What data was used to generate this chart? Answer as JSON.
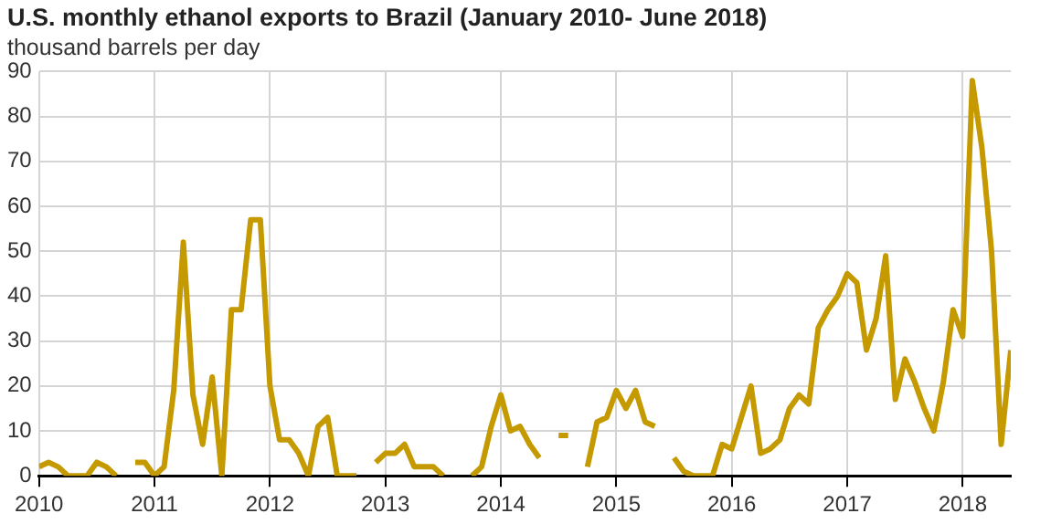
{
  "chart_data": {
    "type": "line",
    "title": "U.S. monthly ethanol exports to Brazil (January 2010- June 2018)",
    "subtitle": "thousand barrels per day",
    "x": [
      "2010-01",
      "2010-02",
      "2010-03",
      "2010-04",
      "2010-05",
      "2010-06",
      "2010-07",
      "2010-08",
      "2010-09",
      "2010-10",
      "2010-11",
      "2010-12",
      "2011-01",
      "2011-02",
      "2011-03",
      "2011-04",
      "2011-05",
      "2011-06",
      "2011-07",
      "2011-08",
      "2011-09",
      "2011-10",
      "2011-11",
      "2011-12",
      "2012-01",
      "2012-02",
      "2012-03",
      "2012-04",
      "2012-05",
      "2012-06",
      "2012-07",
      "2012-08",
      "2012-09",
      "2012-10",
      "2012-11",
      "2012-12",
      "2013-01",
      "2013-02",
      "2013-03",
      "2013-04",
      "2013-05",
      "2013-06",
      "2013-07",
      "2013-08",
      "2013-09",
      "2013-10",
      "2013-11",
      "2013-12",
      "2014-01",
      "2014-02",
      "2014-03",
      "2014-04",
      "2014-05",
      "2014-06",
      "2014-07",
      "2014-08",
      "2014-09",
      "2014-10",
      "2014-11",
      "2014-12",
      "2015-01",
      "2015-02",
      "2015-03",
      "2015-04",
      "2015-05",
      "2015-06",
      "2015-07",
      "2015-08",
      "2015-09",
      "2015-10",
      "2015-11",
      "2015-12",
      "2016-01",
      "2016-02",
      "2016-03",
      "2016-04",
      "2016-05",
      "2016-06",
      "2016-07",
      "2016-08",
      "2016-09",
      "2016-10",
      "2016-11",
      "2016-12",
      "2017-01",
      "2017-02",
      "2017-03",
      "2017-04",
      "2017-05",
      "2017-06",
      "2017-07",
      "2017-08",
      "2017-09",
      "2017-10",
      "2017-11",
      "2017-12",
      "2018-01",
      "2018-02",
      "2018-03",
      "2018-04",
      "2018-05",
      "2018-06"
    ],
    "series": [
      {
        "color": "#c49a00",
        "values": [
          2,
          3,
          2,
          0,
          0,
          0,
          3,
          2,
          0,
          null,
          3,
          3,
          0,
          2,
          19,
          52,
          18,
          7,
          22,
          0,
          37,
          37,
          57,
          57,
          20,
          8,
          8,
          5,
          0,
          11,
          13,
          0,
          0,
          0,
          null,
          3,
          5,
          5,
          7,
          2,
          2,
          2,
          0,
          null,
          null,
          0,
          2,
          11,
          18,
          10,
          11,
          7,
          4,
          null,
          9,
          9,
          null,
          2,
          12,
          13,
          19,
          15,
          19,
          12,
          11,
          null,
          4,
          1,
          0,
          0,
          0,
          7,
          6,
          13,
          20,
          5,
          6,
          8,
          15,
          18,
          16,
          33,
          37,
          40,
          45,
          43,
          28,
          35,
          49,
          17,
          26,
          21,
          15,
          10,
          21,
          37,
          31,
          88,
          73,
          50,
          7,
          28
        ]
      }
    ],
    "xlim": [
      "2010-01",
      "2018-06"
    ],
    "xticks": [
      {
        "value": "2010",
        "label": "2010"
      },
      {
        "value": "2011",
        "label": "2011"
      },
      {
        "value": "2012",
        "label": "2012"
      },
      {
        "value": "2013",
        "label": "2013"
      },
      {
        "value": "2014",
        "label": "2014"
      },
      {
        "value": "2015",
        "label": "2015"
      },
      {
        "value": "2016",
        "label": "2016"
      },
      {
        "value": "2017",
        "label": "2017"
      },
      {
        "value": "2018",
        "label": "2018"
      }
    ],
    "ylim": [
      0,
      90
    ],
    "yticks": [
      0,
      10,
      20,
      30,
      40,
      50,
      60,
      70,
      80,
      90
    ],
    "grid": true,
    "legend": false,
    "marker": "none",
    "line_style": "solid"
  }
}
